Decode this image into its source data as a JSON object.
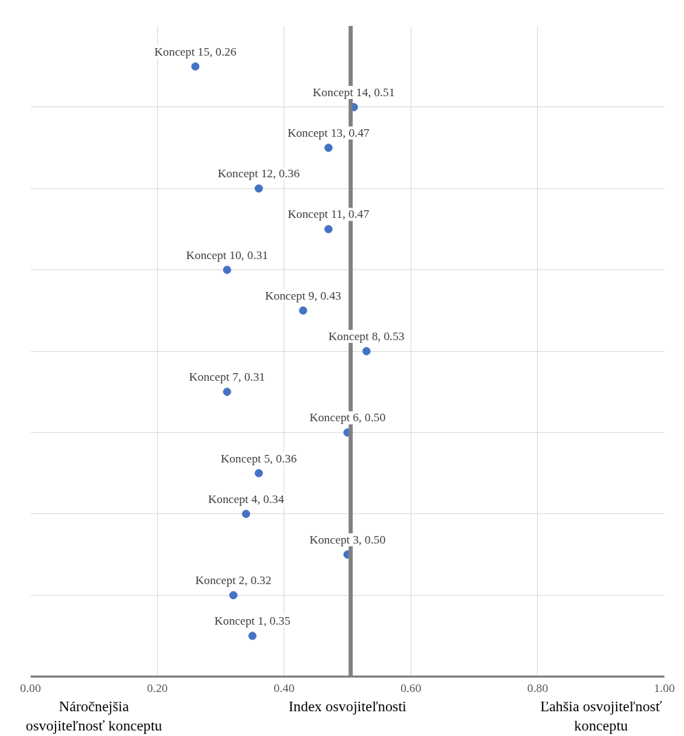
{
  "chart_data": {
    "type": "scatter",
    "x": [
      0.35,
      0.32,
      0.5,
      0.34,
      0.36,
      0.5,
      0.31,
      0.53,
      0.43,
      0.31,
      0.47,
      0.36,
      0.47,
      0.51,
      0.26
    ],
    "values": [
      1,
      2,
      3,
      4,
      5,
      6,
      7,
      8,
      9,
      10,
      11,
      12,
      13,
      14,
      15
    ],
    "value_labels": [
      "Koncept 1, 0.35",
      "Koncept 2, 0.32",
      "Koncept 3, 0.50",
      "Koncept 4, 0.34",
      "Koncept 5, 0.36",
      "Koncept 6, 0.50",
      "Koncept 7, 0.31",
      "Koncept 8, 0.53",
      "Koncept 9, 0.43",
      "Koncept 10, 0.31",
      "Koncept 11, 0.47",
      "Koncept 12, 0.36",
      "Koncept 13, 0.47",
      "Koncept 14, 0.51",
      "Koncept 15, 0.26"
    ],
    "color": "#4472c4",
    "marker": "circle",
    "xlabel": "Index osvojiteľnosti",
    "xlim": [
      0,
      1
    ],
    "xticks": [
      {
        "value": 0,
        "label": "0.00"
      },
      {
        "value": 0.2,
        "label": "0.20"
      },
      {
        "value": 0.4,
        "label": "0.40"
      },
      {
        "value": 0.6,
        "label": "0.60"
      },
      {
        "value": 0.8,
        "label": "0.80"
      },
      {
        "value": 1,
        "label": "1.00"
      }
    ],
    "ylim": [
      0,
      16
    ],
    "yticks": [
      {
        "value": 2,
        "label": null
      },
      {
        "value": 4,
        "label": null
      },
      {
        "value": 6,
        "label": null
      },
      {
        "value": 8,
        "label": null
      },
      {
        "value": 10,
        "label": null
      },
      {
        "value": 12,
        "label": null
      },
      {
        "value": 14,
        "label": null
      }
    ],
    "tick_labels": "x",
    "grid": true,
    "ref_lines": [
      {
        "axis": "x",
        "value": 0.505,
        "color": "#808080"
      }
    ],
    "annotations": [
      "Náročnejšia osvojiteľnosť konceptu",
      "Ľahšia osvojiteľnosť konceptu"
    ]
  }
}
